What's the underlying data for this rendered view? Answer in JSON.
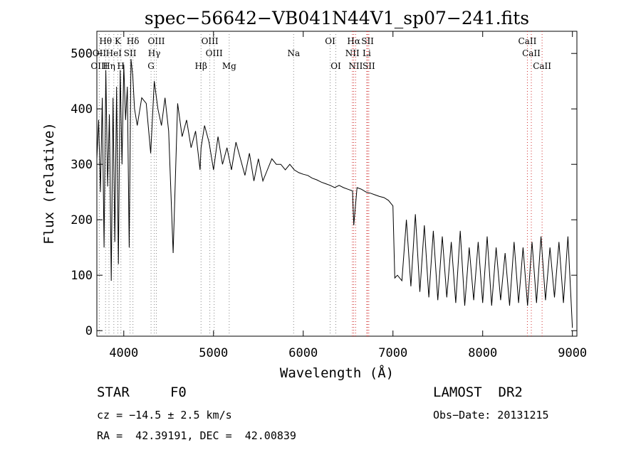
{
  "chart_data": {
    "type": "line",
    "title": "spec−56642−VB041N44V1_sp07−241.fits",
    "xlabel": "Wavelength (Å)",
    "ylabel": "Flux (relative)",
    "xlim": [
      3700,
      9050
    ],
    "ylim": [
      -10,
      540
    ],
    "x_ticks": [
      4000,
      5000,
      6000,
      7000,
      8000,
      9000
    ],
    "y_ticks": [
      0,
      100,
      200,
      300,
      400,
      500
    ],
    "series": [
      {
        "x": [
          3700,
          3720,
          3740,
          3760,
          3780,
          3800,
          3820,
          3840,
          3860,
          3880,
          3900,
          3920,
          3940,
          3960,
          3980,
          4000,
          4020,
          4040,
          4060,
          4080,
          4100,
          4120,
          4150,
          4200,
          4250,
          4300,
          4340,
          4380,
          4420,
          4460,
          4500,
          4550,
          4600,
          4650,
          4700,
          4750,
          4800,
          4850,
          4861,
          4900,
          4950,
          5000,
          5050,
          5100,
          5150,
          5200,
          5250,
          5300,
          5350,
          5400,
          5450,
          5500,
          5550,
          5600,
          5650,
          5700,
          5750,
          5800,
          5850,
          5900,
          5950,
          6000,
          6050,
          6100,
          6150,
          6200,
          6250,
          6300,
          6350,
          6400,
          6450,
          6500,
          6550,
          6563,
          6600,
          6650,
          6700,
          6750,
          6800,
          6850,
          6900,
          6950,
          7000,
          7020,
          7050,
          7100,
          7150,
          7200,
          7250,
          7300,
          7350,
          7400,
          7450,
          7500,
          7550,
          7600,
          7650,
          7700,
          7750,
          7800,
          7850,
          7900,
          7950,
          8000,
          8050,
          8100,
          8150,
          8200,
          8250,
          8300,
          8350,
          8400,
          8450,
          8500,
          8550,
          8600,
          8650,
          8700,
          8750,
          8800,
          8850,
          8900,
          8950,
          9000
        ],
        "y": [
          310,
          380,
          250,
          420,
          150,
          470,
          260,
          390,
          90,
          420,
          160,
          440,
          120,
          470,
          300,
          480,
          380,
          440,
          150,
          490,
          460,
          400,
          370,
          420,
          410,
          320,
          450,
          400,
          370,
          420,
          360,
          140,
          410,
          350,
          380,
          330,
          360,
          290,
          330,
          370,
          340,
          290,
          350,
          300,
          330,
          290,
          340,
          310,
          280,
          320,
          270,
          310,
          270,
          290,
          310,
          300,
          300,
          290,
          300,
          290,
          285,
          282,
          280,
          275,
          272,
          268,
          265,
          262,
          258,
          262,
          258,
          255,
          252,
          190,
          258,
          255,
          250,
          248,
          245,
          242,
          240,
          235,
          225,
          95,
          100,
          90,
          200,
          80,
          210,
          70,
          190,
          60,
          180,
          55,
          170,
          60,
          160,
          50,
          180,
          45,
          150,
          55,
          160,
          50,
          170,
          45,
          150,
          55,
          140,
          45,
          160,
          50,
          150,
          45,
          160,
          50,
          170,
          55,
          150,
          60,
          160,
          50,
          170,
          5
        ]
      }
    ],
    "line_annotations": [
      {
        "label": "Hθ",
        "wl": 3797,
        "row": 0
      },
      {
        "label": "K",
        "wl": 3934,
        "row": 0
      },
      {
        "label": "Hδ",
        "wl": 4102,
        "row": 0
      },
      {
        "label": "OIII",
        "wl": 4363,
        "row": 0
      },
      {
        "label": "OIII",
        "wl": 4959,
        "row": 0
      },
      {
        "label": "OI",
        "wl": 6300,
        "row": 0
      },
      {
        "label": "Hα",
        "wl": 6563,
        "row": 0
      },
      {
        "label": "SII",
        "wl": 6717,
        "row": 0
      },
      {
        "label": "CaII",
        "wl": 8498,
        "row": 0
      },
      {
        "label": "OII",
        "wl": 3727,
        "row": 1
      },
      {
        "label": "HeI",
        "wl": 3889,
        "row": 1
      },
      {
        "label": "SII",
        "wl": 4070,
        "row": 1
      },
      {
        "label": "Hγ",
        "wl": 4340,
        "row": 1
      },
      {
        "label": "OIII",
        "wl": 5007,
        "row": 1
      },
      {
        "label": "Na",
        "wl": 5893,
        "row": 1
      },
      {
        "label": "NII",
        "wl": 6548,
        "row": 1
      },
      {
        "label": "Li",
        "wl": 6708,
        "row": 1
      },
      {
        "label": "CaII",
        "wl": 8542,
        "row": 1
      },
      {
        "label": "OIII",
        "wl": 3727,
        "row": 2
      },
      {
        "label": "Hη",
        "wl": 3835,
        "row": 2
      },
      {
        "label": "H",
        "wl": 3968,
        "row": 2
      },
      {
        "label": "G",
        "wl": 4304,
        "row": 2
      },
      {
        "label": "Hβ",
        "wl": 4861,
        "row": 2
      },
      {
        "label": "Mg",
        "wl": 5175,
        "row": 2
      },
      {
        "label": "OI",
        "wl": 6363,
        "row": 2
      },
      {
        "label": "NII",
        "wl": 6584,
        "row": 2
      },
      {
        "label": "SII",
        "wl": 6731,
        "row": 2
      },
      {
        "label": "CaII",
        "wl": 8662,
        "row": 2
      }
    ],
    "grid": false,
    "legend": "none"
  },
  "info": {
    "classification": "STAR     F0",
    "survey": "LAMOST  DR2",
    "redshift": "cz = −14.5 ± 2.5 km/s",
    "obs_date": "Obs−Date: 20131215",
    "coords": "RA =  42.39191, DEC =  42.00839"
  }
}
